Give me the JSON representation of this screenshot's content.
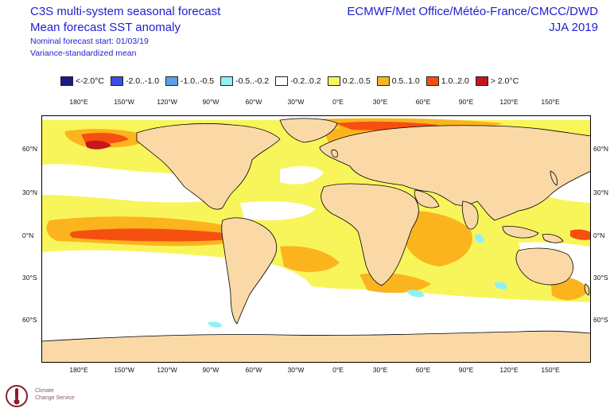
{
  "header": {
    "title_line1": "C3S multi-system seasonal forecast",
    "title_line2": "Mean forecast SST anomaly",
    "nominal_start": "Nominal forecast start: 01/03/19",
    "note": "Variance-standardized mean",
    "centres": "ECMWF/Met Office/Météo-France/CMCC/DWD",
    "period": "JJA 2019"
  },
  "legend": [
    {
      "label": "<-2.0°C",
      "color": "#1a1a8c"
    },
    {
      "label": "-2.0..-1.0",
      "color": "#3b4de6"
    },
    {
      "label": "-1.0..-0.5",
      "color": "#5aa0e6"
    },
    {
      "label": "-0.5..-0.2",
      "color": "#8ef2f5"
    },
    {
      "label": "-0.2..0.2",
      "color": "#ffffff"
    },
    {
      "label": "0.2..0.5",
      "color": "#f8f55a"
    },
    {
      "label": "0.5..1.0",
      "color": "#fbb41e"
    },
    {
      "label": "1.0..2.0",
      "color": "#f5500f"
    },
    {
      "label": "> 2.0°C",
      "color": "#c8141e"
    }
  ],
  "map": {
    "land_color": "#fad9a6",
    "lon_labels": [
      "180°E",
      "150°W",
      "120°W",
      "90°W",
      "60°W",
      "30°W",
      "0°E",
      "30°E",
      "60°E",
      "90°E",
      "120°E",
      "150°E"
    ],
    "lat_labels": [
      "60°N",
      "30°N",
      "0°N",
      "30°S",
      "60°S"
    ]
  },
  "logo": {
    "line1": "Climate",
    "line2": "Change Service"
  }
}
